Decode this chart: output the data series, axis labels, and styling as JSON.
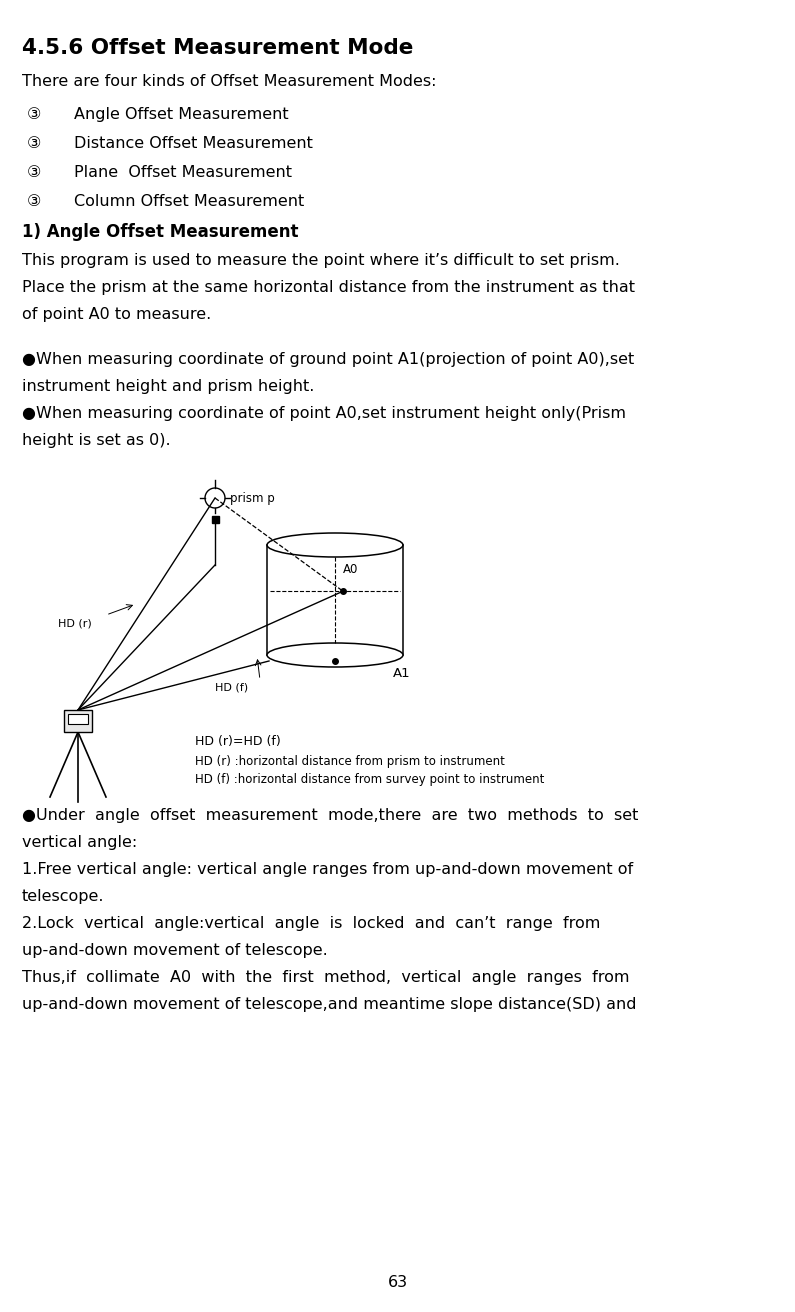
{
  "title": "4.5.6 Offset Measurement Mode",
  "intro": "There are four kinds of Offset Measurement Modes:",
  "bullet_symbol": "③",
  "bullets": [
    "Angle Offset Measurement",
    "Distance Offset Measurement",
    "Plane  Offset Measurement",
    "Column Offset Measurement"
  ],
  "section_title": "1) Angle Offset Measurement",
  "para1_lines": [
    "This program is used to measure the point where it’s difficult to set prism.",
    "Place the prism at the same horizontal distance from the instrument as that",
    "of point A0 to measure."
  ],
  "bt1_lines": [
    "●When measuring coordinate of ground point A1(projection of point A0),set",
    "instrument height and prism height."
  ],
  "bt2_lines": [
    "●When measuring coordinate of point A0,set instrument height only(Prism",
    "height is set as 0)."
  ],
  "bt3_lines": [
    "●Under  angle  offset  measurement  mode,there  are  two  methods  to  set",
    "vertical angle:"
  ],
  "text_free_lines": [
    "1.Free vertical angle: vertical angle ranges from up-and-down movement of",
    "telescope."
  ],
  "text_lock_lines": [
    "2.Lock  vertical  angle:vertical  angle  is  locked  and  can’t  range  from",
    "up-and-down movement of telescope."
  ],
  "text_thus_lines": [
    "Thus,if  collimate  A0  with  the  first  method,  vertical  angle  ranges  from",
    "up-and-down movement of telescope,and meantime slope distance(SD) and"
  ],
  "page_number": "63",
  "bg": "#ffffff",
  "fg": "#000000"
}
